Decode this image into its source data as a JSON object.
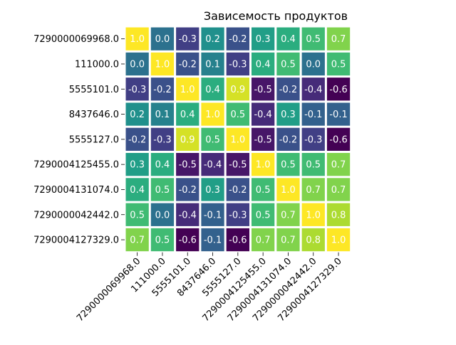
{
  "chart_data": {
    "type": "heatmap",
    "title": "Зависемость продуктов",
    "xlabel": "",
    "ylabel": "",
    "categories": [
      "7290000069968.0",
      "111000.0",
      "5555101.0",
      "8437646.0",
      "5555127.0",
      "7290004125455.0",
      "7290004131074.0",
      "7290000042442.0",
      "7290004127329.0"
    ],
    "values": [
      [
        1.0,
        -0.0,
        -0.3,
        0.2,
        -0.2,
        0.3,
        0.4,
        0.5,
        0.7
      ],
      [
        -0.0,
        1.0,
        -0.2,
        0.1,
        -0.3,
        0.4,
        0.5,
        -0.0,
        0.5
      ],
      [
        -0.3,
        -0.2,
        1.0,
        0.4,
        0.9,
        -0.5,
        -0.2,
        -0.4,
        -0.6
      ],
      [
        0.2,
        0.1,
        0.4,
        1.0,
        0.5,
        -0.4,
        0.3,
        -0.1,
        -0.1
      ],
      [
        -0.2,
        -0.3,
        0.9,
        0.5,
        1.0,
        -0.5,
        -0.2,
        -0.3,
        -0.6
      ],
      [
        0.3,
        0.4,
        -0.5,
        -0.4,
        -0.5,
        1.0,
        0.5,
        0.5,
        0.7
      ],
      [
        0.4,
        0.5,
        -0.2,
        0.3,
        -0.2,
        0.5,
        1.0,
        0.7,
        0.7
      ],
      [
        0.5,
        -0.0,
        -0.4,
        -0.1,
        -0.3,
        0.5,
        0.7,
        1.0,
        0.8
      ],
      [
        0.7,
        0.5,
        -0.6,
        -0.1,
        -0.6,
        0.7,
        0.7,
        0.8,
        1.0
      ]
    ],
    "value_range": [
      -0.6,
      1.0
    ],
    "colormap": "viridis",
    "cell_border_color": "#ffffff",
    "annotation_color": "#ffffff",
    "legend": "none",
    "grid": false
  }
}
